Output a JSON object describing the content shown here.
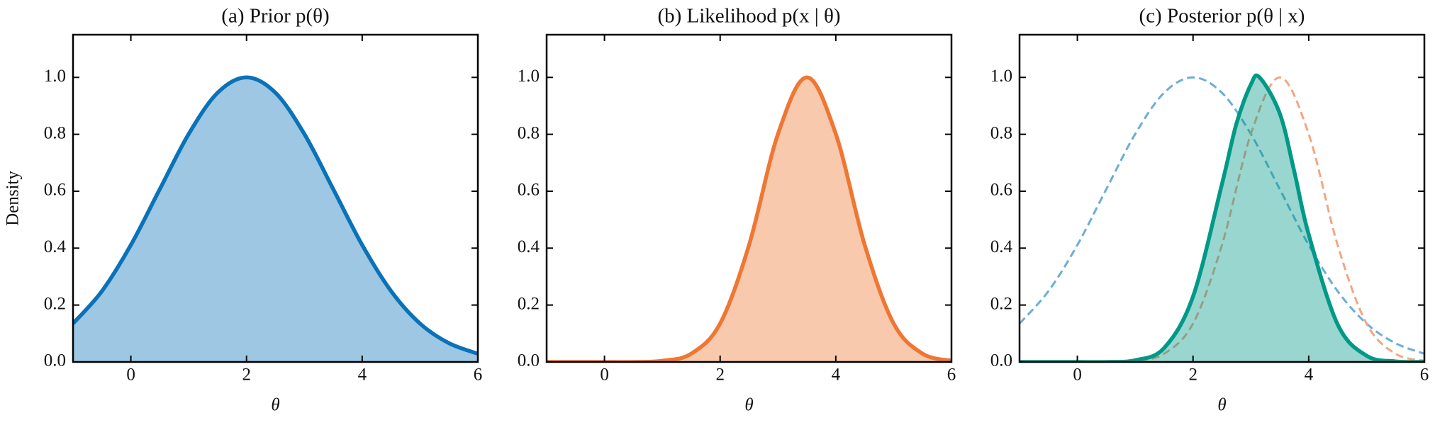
{
  "chart_data": [
    {
      "type": "line",
      "title": "(a) Prior p(θ)",
      "xlabel": "θ",
      "ylabel": "Density",
      "x": [
        -1,
        -0.5,
        0,
        0.5,
        1,
        1.5,
        2,
        2.5,
        3,
        3.5,
        4,
        4.5,
        5,
        5.5,
        6
      ],
      "series": [
        {
          "color": "#0a72b8",
          "fill": true,
          "dashed": false,
          "values": [
            0.135,
            0.249,
            0.411,
            0.607,
            0.801,
            0.946,
            1,
            0.946,
            0.801,
            0.607,
            0.411,
            0.249,
            0.135,
            0.066,
            0.029
          ]
        }
      ],
      "xlim": [
        -1,
        6
      ],
      "ylim": [
        0,
        1.15
      ],
      "xticks": [
        0,
        2,
        4,
        6
      ],
      "yticks": [
        {
          "value": 0,
          "label": "0.0"
        },
        0.2,
        0.4,
        0.6,
        0.8,
        {
          "value": 1,
          "label": "1.0"
        }
      ]
    },
    {
      "type": "line",
      "title": "(b) Likelihood p(x | θ)",
      "xlabel": "θ",
      "x": [
        -1,
        -0.5,
        0,
        0.5,
        1,
        1.5,
        2,
        2.5,
        3,
        3.5,
        4,
        4.5,
        5,
        5.5,
        6
      ],
      "series": [
        {
          "color": "#ee7733",
          "fill": true,
          "dashed": false,
          "values": [
            0,
            0,
            0,
            0,
            0.004,
            0.029,
            0.135,
            0.411,
            0.801,
            1,
            0.801,
            0.411,
            0.135,
            0.029,
            0.004
          ]
        }
      ],
      "xlim": [
        -1,
        6
      ],
      "ylim": [
        0,
        1.15
      ],
      "xticks": [
        0,
        2,
        4,
        6
      ],
      "yticks": [
        {
          "value": 0,
          "label": "0.0"
        },
        0.2,
        0.4,
        0.6,
        0.8,
        {
          "value": 1,
          "label": "1.0"
        }
      ]
    },
    {
      "type": "line",
      "title": "(c) Posterior p(θ | x)",
      "xlabel": "θ",
      "x": [
        -1,
        -0.5,
        0,
        0.5,
        1,
        1.5,
        2,
        2.5,
        3,
        3.5,
        4,
        4.5,
        5,
        5.5,
        6
      ],
      "series": [
        {
          "color": "#6baed6",
          "fill": false,
          "dashed": true,
          "values": [
            0.135,
            0.249,
            0.411,
            0.607,
            0.801,
            0.946,
            1,
            0.946,
            0.801,
            0.607,
            0.411,
            0.249,
            0.135,
            0.066,
            0.029
          ]
        },
        {
          "color": "#f4a582",
          "fill": false,
          "dashed": true,
          "values": [
            0,
            0,
            0,
            0,
            0.004,
            0.029,
            0.135,
            0.411,
            0.801,
            1,
            0.801,
            0.411,
            0.135,
            0.029,
            0.004
          ]
        },
        {
          "color": "#009988",
          "fill": true,
          "dashed": false,
          "x": [
            -1,
            0,
            0.5,
            1,
            1.5,
            2,
            2.5,
            2.75,
            3,
            3.15,
            3.5,
            3.75,
            4,
            4.5,
            5,
            5.5,
            6
          ],
          "values": [
            0,
            0,
            0,
            0.006,
            0.049,
            0.23,
            0.625,
            0.837,
            0.975,
            1,
            0.873,
            0.67,
            0.448,
            0.132,
            0.022,
            0.002,
            0
          ]
        }
      ],
      "xlim": [
        -1,
        6
      ],
      "ylim": [
        0,
        1.15
      ],
      "xticks": [
        0,
        2,
        4,
        6
      ],
      "yticks": [
        {
          "value": 0,
          "label": "0.0"
        },
        0.2,
        0.4,
        0.6,
        0.8,
        {
          "value": 1,
          "label": "1.0"
        }
      ]
    }
  ]
}
